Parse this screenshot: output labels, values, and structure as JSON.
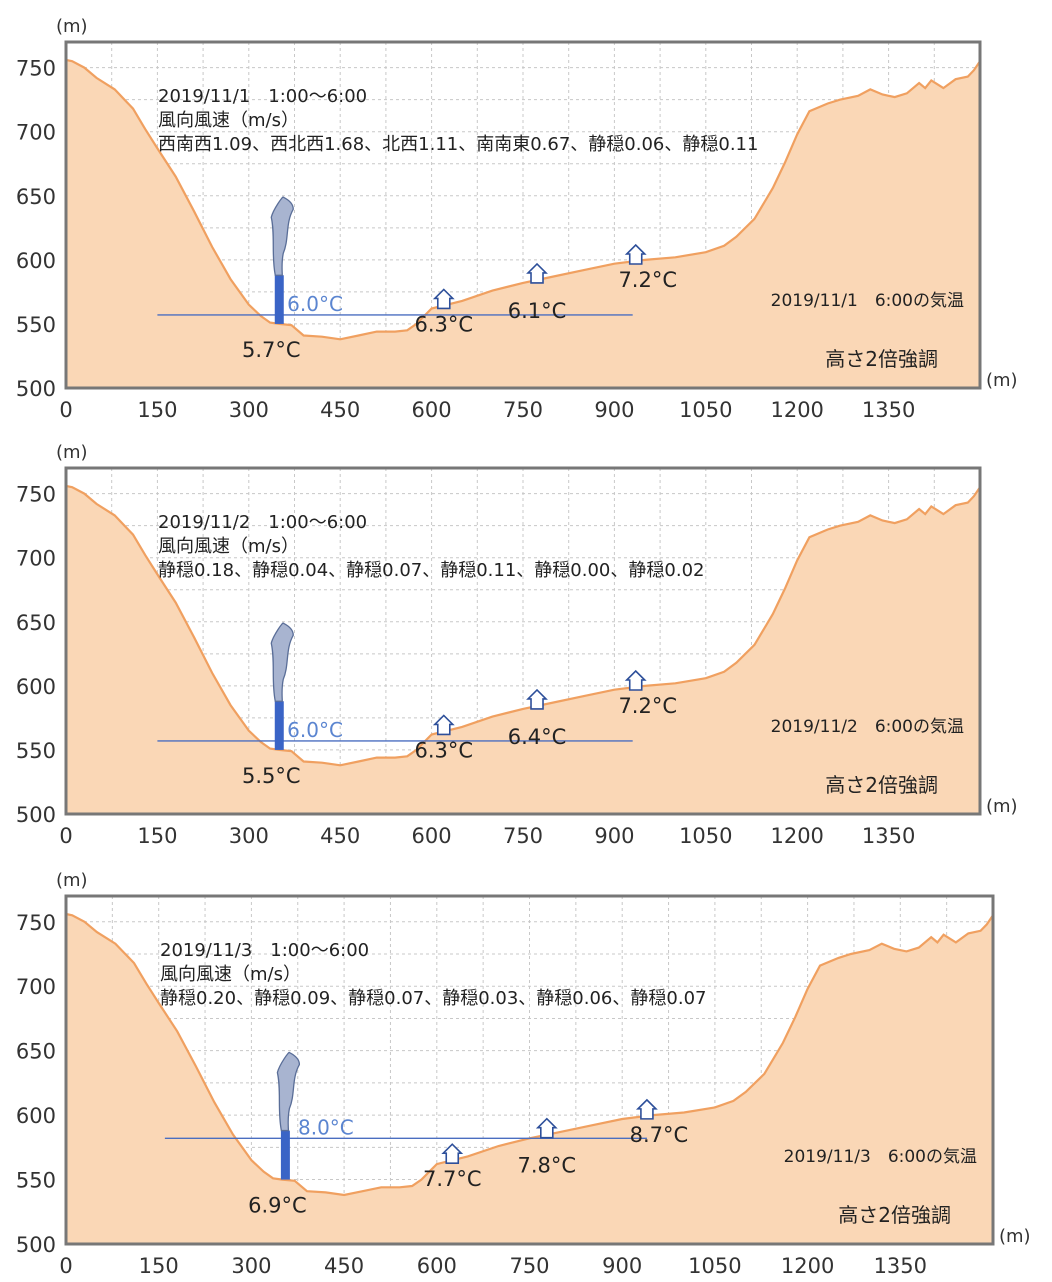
{
  "chart_data": [
    {
      "type": "area",
      "ylabel": "(m)",
      "xlabel": "(m)",
      "xlim": [
        0,
        1500
      ],
      "ylim": [
        500,
        770
      ],
      "x_ticks": [
        "0",
        "150",
        "300",
        "450",
        "600",
        "750",
        "900",
        "1050",
        "1200",
        "1350"
      ],
      "y_ticks": [
        "500",
        "550",
        "600",
        "650",
        "700",
        "750"
      ],
      "grid": true,
      "note_title": "2019/11/1　1:00～6:00",
      "note_unit": "風向風速（m/s）",
      "note_winds": "西南西1.09、西北西1.68、北西1.11、南南東0.67、静穏0.06、静穏0.11",
      "temp_caption": "2019/11/1　6:00の気温",
      "emphasis": "高さ2倍強調",
      "air_temp": {
        "label": "6.0°C",
        "height_m": 557,
        "x_from": 150,
        "x_to": 930
      },
      "tower": {
        "x": 350,
        "base_m": 550,
        "top_m": 588
      },
      "stations": [
        {
          "x": 350,
          "label": "5.7°C"
        },
        {
          "x": 620,
          "label": "6.3°C"
        },
        {
          "x": 773,
          "label": "6.1°C"
        },
        {
          "x": 935,
          "label": "7.2°C"
        }
      ],
      "house_x": [
        620,
        773,
        935
      ],
      "terrain": {
        "x": [
          0,
          10,
          30,
          50,
          80,
          110,
          130,
          150,
          180,
          210,
          240,
          270,
          300,
          320,
          335,
          350,
          370,
          390,
          420,
          450,
          480,
          510,
          540,
          560,
          575,
          600,
          650,
          700,
          750,
          800,
          850,
          900,
          950,
          1000,
          1050,
          1080,
          1100,
          1130,
          1160,
          1180,
          1200,
          1220,
          1250,
          1270,
          1300,
          1320,
          1340,
          1360,
          1380,
          1400,
          1410,
          1420,
          1440,
          1460,
          1480,
          1490,
          1500
        ],
        "y": [
          756,
          755,
          750,
          742,
          733,
          718,
          702,
          687,
          665,
          638,
          610,
          585,
          565,
          556,
          551,
          550,
          549,
          541,
          540,
          538,
          541,
          544,
          544,
          545,
          550,
          562,
          568,
          576,
          582,
          587,
          592,
          597,
          600,
          602,
          606,
          611,
          618,
          632,
          656,
          676,
          698,
          716,
          722,
          725,
          728,
          733,
          729,
          727,
          730,
          738,
          734,
          740,
          734,
          741,
          743,
          748,
          755
        ]
      }
    },
    {
      "type": "area",
      "ylabel": "(m)",
      "xlabel": "(m)",
      "xlim": [
        0,
        1500
      ],
      "ylim": [
        500,
        770
      ],
      "x_ticks": [
        "0",
        "150",
        "300",
        "450",
        "600",
        "750",
        "900",
        "1050",
        "1200",
        "1350"
      ],
      "y_ticks": [
        "500",
        "550",
        "600",
        "650",
        "700",
        "750"
      ],
      "grid": true,
      "note_title": "2019/11/2　1:00～6:00",
      "note_unit": "風向風速（m/s）",
      "note_winds": "静穏0.18、静穏0.04、静穏0.07、静穏0.11、静穏0.00、静穏0.02",
      "temp_caption": "2019/11/2　6:00の気温",
      "emphasis": "高さ2倍強調",
      "air_temp": {
        "label": "6.0°C",
        "height_m": 557,
        "x_from": 150,
        "x_to": 930
      },
      "tower": {
        "x": 350,
        "base_m": 550,
        "top_m": 588
      },
      "stations": [
        {
          "x": 350,
          "label": "5.5°C"
        },
        {
          "x": 620,
          "label": "6.3°C"
        },
        {
          "x": 773,
          "label": "6.4°C"
        },
        {
          "x": 935,
          "label": "7.2°C"
        }
      ],
      "house_x": [
        620,
        773,
        935
      ],
      "terrain": {
        "x": [
          0,
          10,
          30,
          50,
          80,
          110,
          130,
          150,
          180,
          210,
          240,
          270,
          300,
          320,
          335,
          350,
          370,
          390,
          420,
          450,
          480,
          510,
          540,
          560,
          575,
          600,
          650,
          700,
          750,
          800,
          850,
          900,
          950,
          1000,
          1050,
          1080,
          1100,
          1130,
          1160,
          1180,
          1200,
          1220,
          1250,
          1270,
          1300,
          1320,
          1340,
          1360,
          1380,
          1400,
          1410,
          1420,
          1440,
          1460,
          1480,
          1490,
          1500
        ],
        "y": [
          756,
          755,
          750,
          742,
          733,
          718,
          702,
          687,
          665,
          638,
          610,
          585,
          565,
          556,
          551,
          550,
          549,
          541,
          540,
          538,
          541,
          544,
          544,
          545,
          550,
          562,
          568,
          576,
          582,
          587,
          592,
          597,
          600,
          602,
          606,
          611,
          618,
          632,
          656,
          676,
          698,
          716,
          722,
          725,
          728,
          733,
          729,
          727,
          730,
          738,
          734,
          740,
          734,
          741,
          743,
          748,
          755
        ]
      }
    },
    {
      "type": "area",
      "ylabel": "(m)",
      "xlabel": "(m)",
      "xlim": [
        0,
        1500
      ],
      "ylim": [
        500,
        770
      ],
      "x_ticks": [
        "0",
        "150",
        "300",
        "450",
        "600",
        "750",
        "900",
        "1050",
        "1200",
        "1350"
      ],
      "y_ticks": [
        "500",
        "550",
        "600",
        "650",
        "700",
        "750"
      ],
      "grid": true,
      "note_title": "2019/11/3　1:00～6:00",
      "note_unit": "風向風速（m/s）",
      "note_winds": "静穏0.20、静穏0.09、静穏0.07、静穏0.03、静穏0.06、静穏0.07",
      "temp_caption": "2019/11/3　6:00の気温",
      "emphasis": "高さ2倍強調",
      "air_temp": {
        "label": "8.0°C",
        "height_m": 582,
        "x_from": 160,
        "x_to": 940
      },
      "tower": {
        "x": 355,
        "base_m": 550,
        "top_m": 588
      },
      "stations": [
        {
          "x": 355,
          "label": "6.9°C"
        },
        {
          "x": 625,
          "label": "7.7°C"
        },
        {
          "x": 778,
          "label": "7.8°C"
        },
        {
          "x": 940,
          "label": "8.7°C"
        }
      ],
      "house_x": [
        625,
        778,
        940
      ],
      "terrain": {
        "x": [
          0,
          10,
          30,
          50,
          80,
          110,
          130,
          150,
          180,
          210,
          240,
          270,
          300,
          320,
          335,
          350,
          370,
          390,
          420,
          450,
          480,
          510,
          540,
          560,
          575,
          600,
          650,
          700,
          750,
          800,
          850,
          900,
          950,
          1000,
          1050,
          1080,
          1100,
          1130,
          1160,
          1180,
          1200,
          1220,
          1250,
          1270,
          1300,
          1320,
          1340,
          1360,
          1380,
          1400,
          1410,
          1420,
          1440,
          1460,
          1480,
          1490,
          1500
        ],
        "y": [
          756,
          755,
          750,
          742,
          733,
          718,
          702,
          687,
          665,
          638,
          610,
          585,
          565,
          556,
          551,
          550,
          549,
          541,
          540,
          538,
          541,
          544,
          544,
          545,
          550,
          562,
          568,
          576,
          582,
          587,
          592,
          597,
          600,
          602,
          606,
          611,
          618,
          632,
          656,
          676,
          698,
          716,
          722,
          725,
          728,
          733,
          729,
          727,
          730,
          738,
          734,
          740,
          734,
          741,
          743,
          748,
          755
        ]
      }
    }
  ]
}
